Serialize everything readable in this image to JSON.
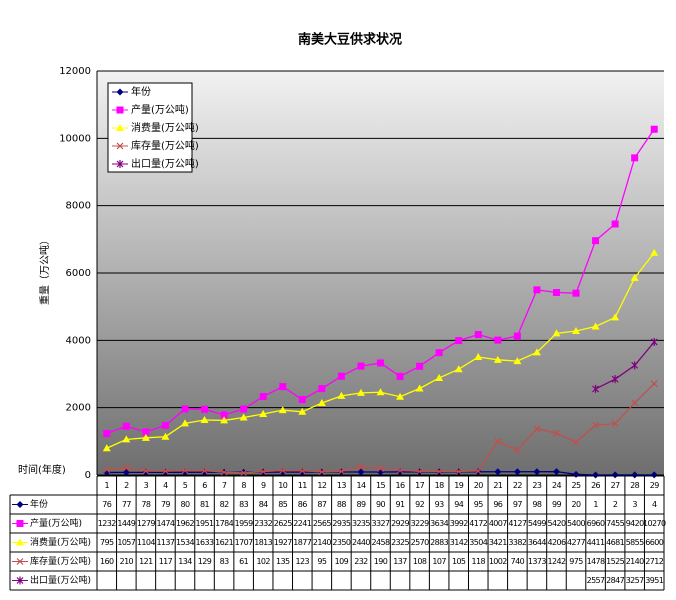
{
  "chart_data": {
    "type": "line",
    "title": "南美大豆供求状况",
    "y_label": "重量（万公吨）",
    "x_label": "时间(年度)",
    "categories": [
      "1",
      "2",
      "3",
      "4",
      "5",
      "6",
      "7",
      "8",
      "9",
      "10",
      "11",
      "12",
      "13",
      "14",
      "15",
      "16",
      "17",
      "18",
      "19",
      "20",
      "21",
      "22",
      "23",
      "24",
      "25",
      "26",
      "27",
      "28",
      "29"
    ],
    "series": [
      {
        "name": "年份",
        "color": "#000080",
        "marker": "diamond",
        "values": [
          76,
          77,
          78,
          79,
          80,
          81,
          82,
          83,
          84,
          85,
          86,
          87,
          88,
          89,
          90,
          91,
          92,
          93,
          94,
          95,
          96,
          97,
          98,
          99,
          20,
          1,
          2,
          3,
          4
        ]
      },
      {
        "name": "产量(万公吨)",
        "color": "#ff00ff",
        "marker": "square",
        "values": [
          1232,
          1449,
          1279,
          1474,
          1962,
          1951,
          1784,
          1959,
          2332,
          2625,
          2241,
          2565,
          2935,
          3235,
          3327,
          2929,
          3229,
          3634,
          3992,
          4172,
          4007,
          4127,
          5499,
          5420,
          5400,
          6960,
          7455,
          9420,
          10270
        ]
      },
      {
        "name": "消费量(万公吨)",
        "color": "#ffff00",
        "marker": "triangle",
        "values": [
          795,
          1057,
          1104,
          1137,
          1534,
          1633,
          1621,
          1707,
          1813,
          1927,
          1877,
          2140,
          2350,
          2440,
          2458,
          2325,
          2570,
          2883,
          3142,
          3504,
          3421,
          3382,
          3644,
          4206,
          4277,
          4411,
          4681,
          5855,
          6600
        ]
      },
      {
        "name": "库存量(万公吨)",
        "color": "#c0504d",
        "marker": "x",
        "values": [
          160,
          210,
          121,
          117,
          134,
          129,
          83,
          61,
          102,
          135,
          123,
          95,
          109,
          232,
          190,
          137,
          108,
          107,
          105,
          118,
          1002,
          740,
          1373,
          1242,
          975,
          1478,
          1525,
          2140,
          2712
        ]
      },
      {
        "name": "出口量(万公吨)",
        "color": "#800080",
        "marker": "star",
        "values": [
          null,
          null,
          null,
          null,
          null,
          null,
          null,
          null,
          null,
          null,
          null,
          null,
          null,
          null,
          null,
          null,
          null,
          null,
          null,
          null,
          null,
          null,
          null,
          null,
          null,
          2557,
          2847,
          3257,
          3951
        ]
      }
    ],
    "ylim": [
      0,
      12000
    ],
    "yticks": [
      0,
      2000,
      4000,
      6000,
      8000,
      10000,
      12000
    ],
    "grid": true
  }
}
